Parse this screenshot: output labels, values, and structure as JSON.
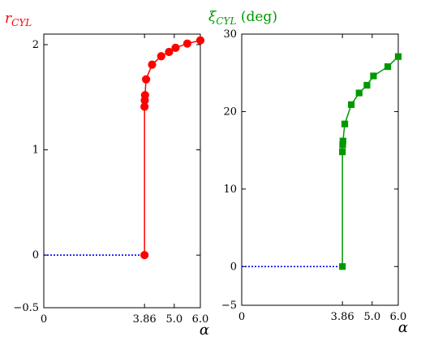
{
  "chart_data": [
    {
      "type": "line",
      "title": {
        "symbol": "r",
        "subscript": "CYL",
        "suffix": ""
      },
      "xlabel": "α",
      "xlim": [
        0,
        6.0
      ],
      "ylim": [
        -0.5,
        2.1
      ],
      "xticks": [
        0,
        3.86,
        5.0,
        6.0
      ],
      "xtick_labels": [
        "0",
        "3.86",
        "5.0",
        "6.0"
      ],
      "yticks": [
        -0.5,
        0,
        1,
        2
      ],
      "ytick_labels": [
        "−0.5",
        "0",
        "1",
        "2"
      ],
      "grid": false,
      "color": "#ff0000",
      "marker": "circle",
      "series": [
        {
          "x": [
            3.86,
            3.86,
            3.87,
            3.88,
            3.92,
            4.15,
            4.5,
            4.8,
            5.05,
            5.5,
            6.0
          ],
          "y": [
            0,
            1.41,
            1.47,
            1.52,
            1.67,
            1.81,
            1.89,
            1.93,
            1.97,
            2.01,
            2.04
          ]
        }
      ],
      "dotted_line": {
        "x": [
          0,
          3.86
        ],
        "y": [
          0,
          0
        ],
        "color": "#0000ff"
      }
    },
    {
      "type": "line",
      "title": {
        "symbol": "ξ",
        "subscript": "CYL",
        "suffix": " (deg)"
      },
      "xlabel": "α",
      "xlim": [
        0,
        6.0
      ],
      "ylim": [
        -5,
        30
      ],
      "xticks": [
        0,
        3.86,
        5.0,
        6.0
      ],
      "xtick_labels": [
        "0",
        "3.86",
        "5.0",
        "6.0"
      ],
      "yticks": [
        -5,
        0,
        10,
        20,
        30
      ],
      "ytick_labels": [
        "−5",
        "0",
        "10",
        "20",
        "30"
      ],
      "grid": false,
      "color": "#009900",
      "marker": "square",
      "series": [
        {
          "x": [
            3.86,
            3.86,
            3.87,
            3.88,
            3.95,
            4.2,
            4.5,
            4.8,
            5.05,
            5.6,
            6.0
          ],
          "y": [
            0,
            14.8,
            15.7,
            16.2,
            18.4,
            20.9,
            22.4,
            23.4,
            24.6,
            25.8,
            27.1
          ]
        }
      ],
      "dotted_line": {
        "x": [
          0,
          3.86
        ],
        "y": [
          0,
          0
        ],
        "color": "#0000ff"
      }
    }
  ]
}
